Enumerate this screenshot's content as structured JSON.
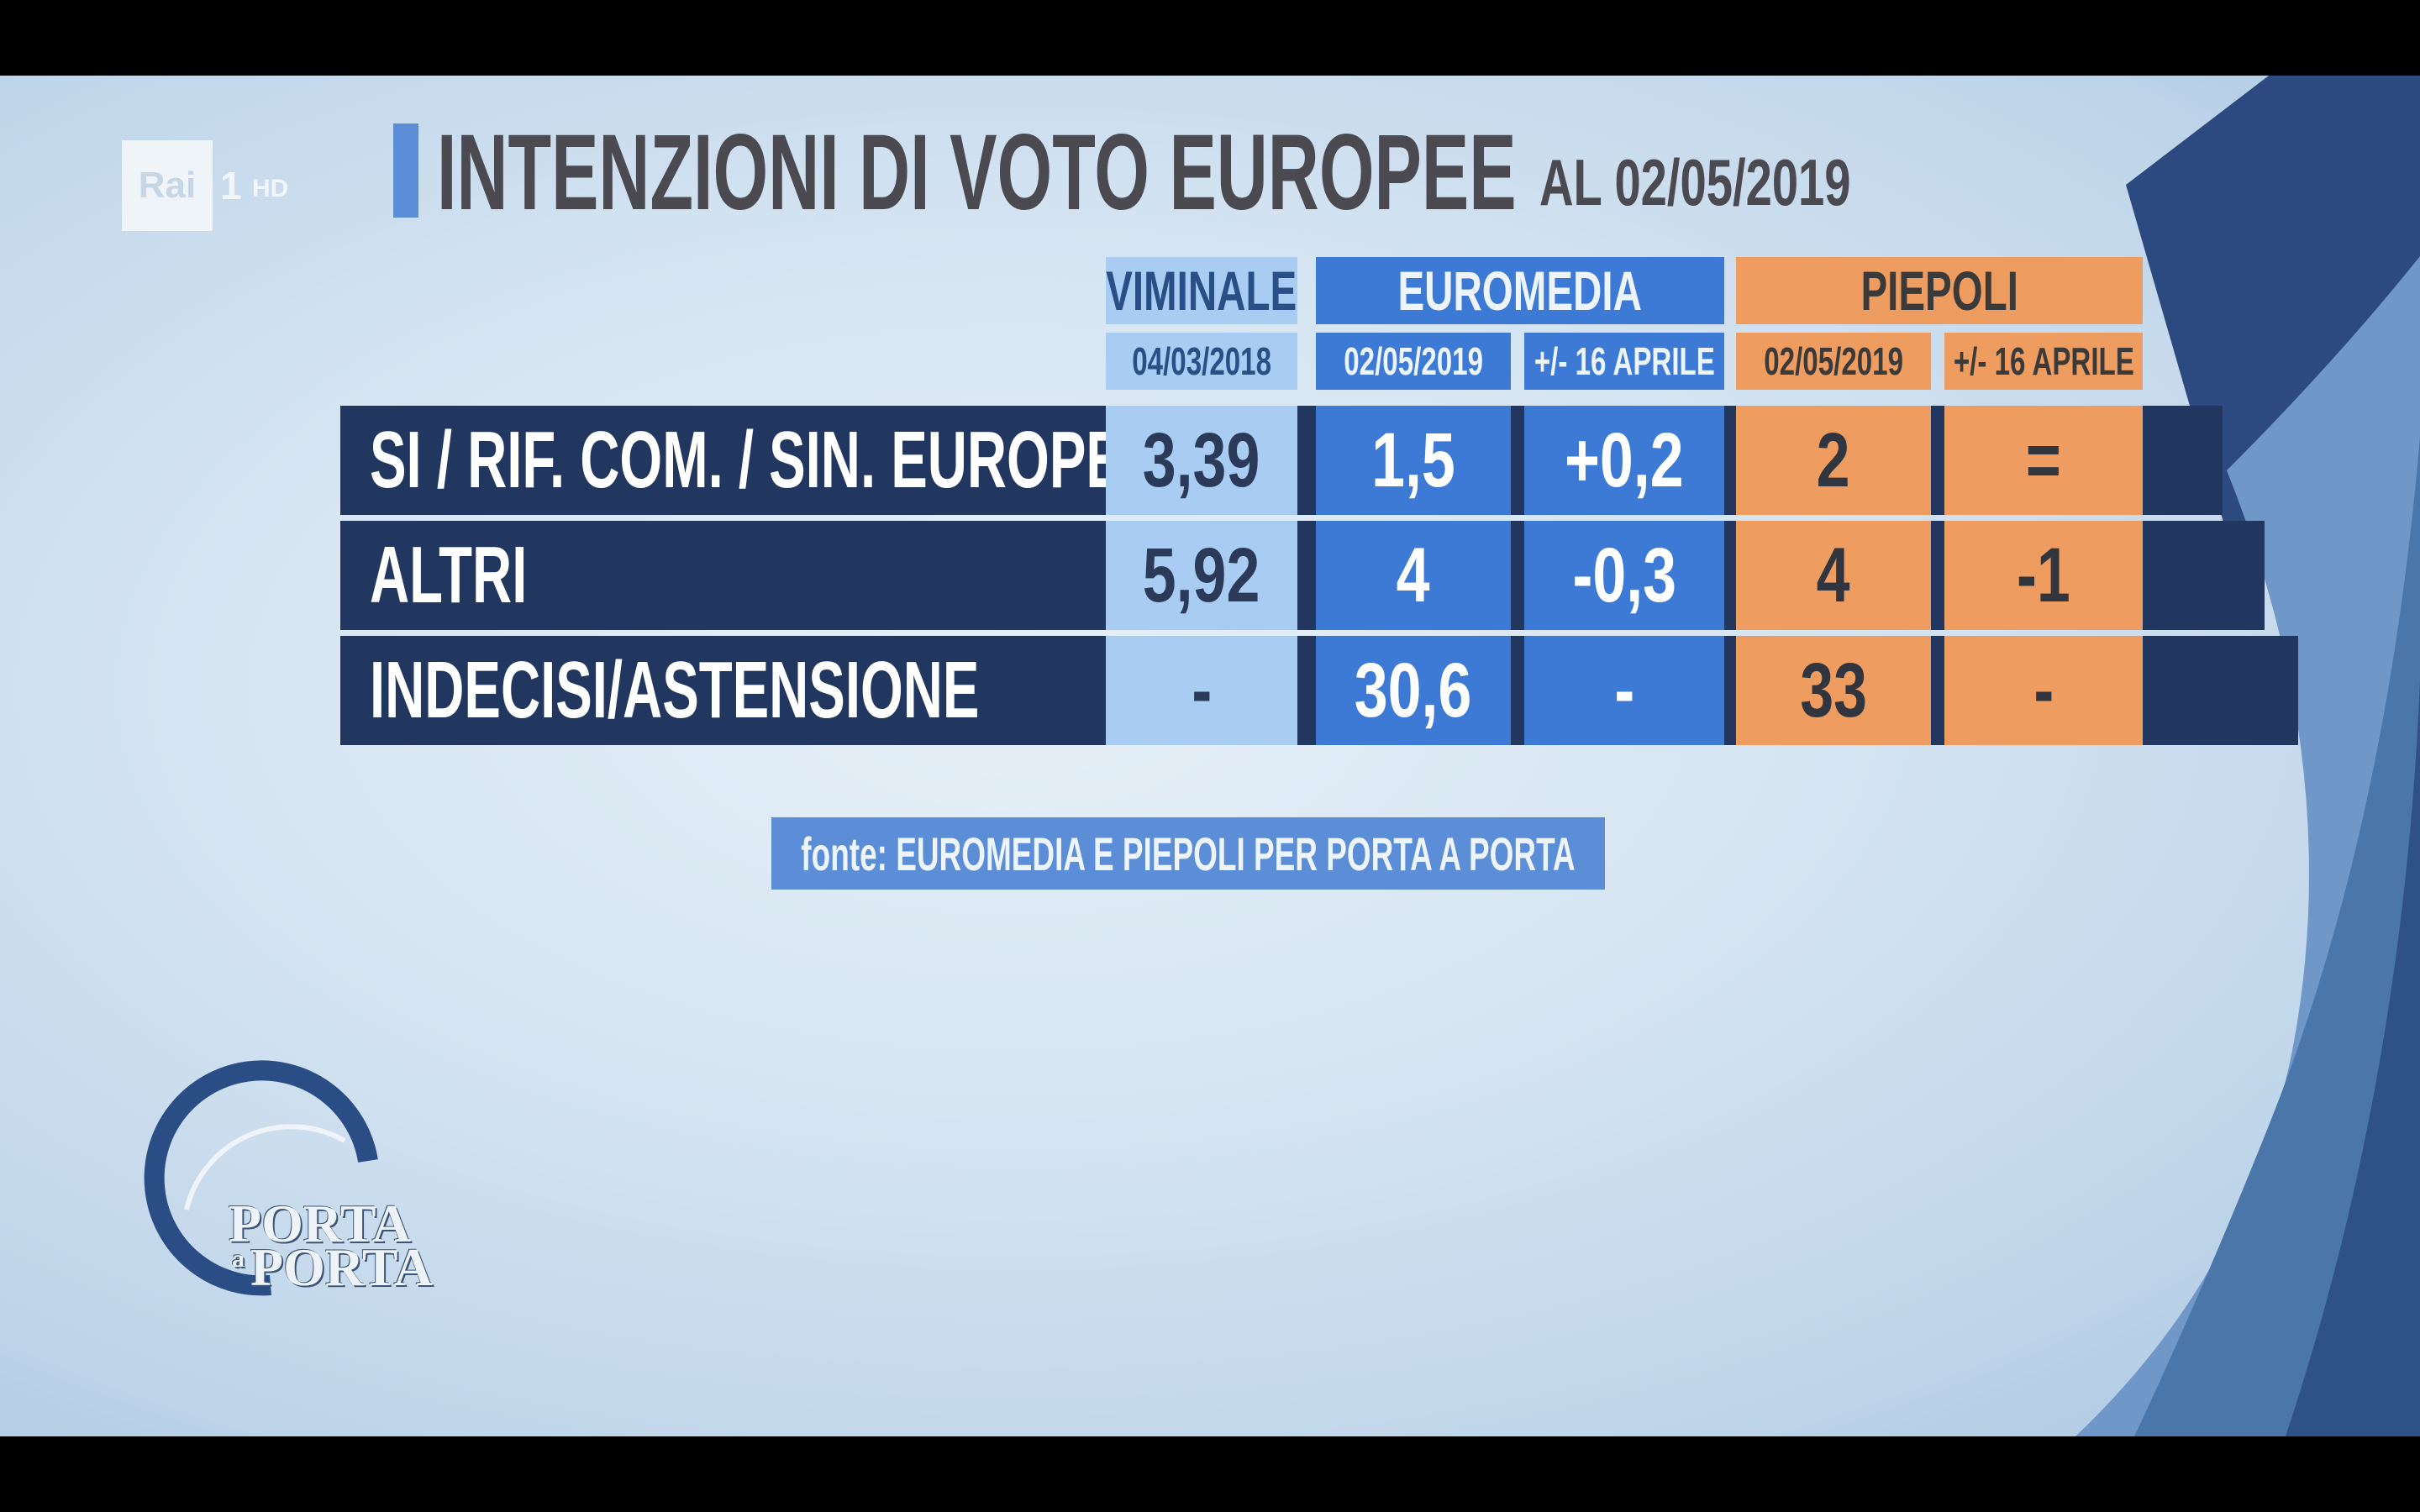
{
  "channel": {
    "logo_text": "Rai",
    "number": "1",
    "hd": "HD"
  },
  "title": {
    "main": "INTENZIONI DI VOTO EUROPEE",
    "date": "AL 02/05/2019"
  },
  "columns": {
    "viminale": {
      "name": "VIMINALE",
      "date": "04/03/2018"
    },
    "euromedia": {
      "name": "EUROMEDIA",
      "date": "02/05/2019",
      "delta": "+/- 16 APRILE"
    },
    "piepoli": {
      "name": "PIEPOLI",
      "date": "02/05/2019",
      "delta": "+/- 16 APRILE"
    }
  },
  "rows": [
    {
      "label": "SI / RIF. COM. / SIN. EUROPEA",
      "viminale": "3,39",
      "euromedia": "1,5",
      "euromedia_delta": "+0,2",
      "piepoli": "2",
      "piepoli_delta": "="
    },
    {
      "label": "ALTRI",
      "viminale": "5,92",
      "euromedia": "4",
      "euromedia_delta": "-0,3",
      "piepoli": "4",
      "piepoli_delta": "-1"
    },
    {
      "label": "INDECISI/ASTENSIONE",
      "viminale": "-",
      "euromedia": "30,6",
      "euromedia_delta": "-",
      "piepoli": "33",
      "piepoli_delta": "-"
    }
  ],
  "source": "fonte: EUROMEDIA E PIEPOLI PER PORTA A PORTA",
  "show_logo": {
    "line1": "PORTA",
    "line2_small": "a",
    "line2": "PORTA"
  },
  "colors": {
    "viminale": "#a9cdf2",
    "euromedia": "#3d7ad6",
    "piepoli": "#ee9c60",
    "row_band": "#22375f",
    "accent": "#5b8ed6",
    "title_text": "#4a4a50"
  }
}
